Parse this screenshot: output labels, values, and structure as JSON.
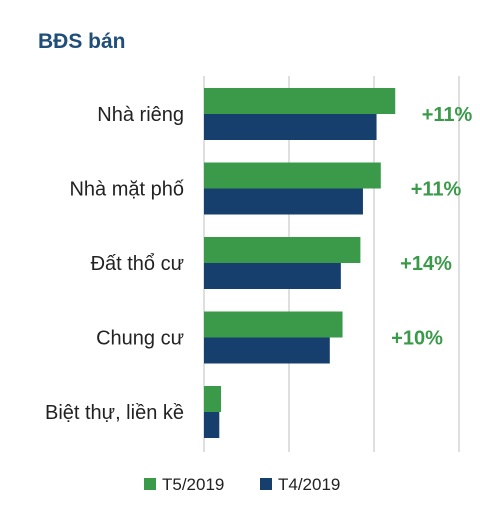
{
  "chart_data": {
    "type": "bar",
    "orientation": "horizontal",
    "title": "BĐS bán",
    "categories": [
      "Nhà riêng",
      "Nhà mặt phố",
      "Đất thổ cư",
      "Chung cư",
      "Biệt thự, liền kề"
    ],
    "series": [
      {
        "name": "T5/2019",
        "color": "#3a9a4a",
        "values": [
          22.5,
          20.8,
          18.4,
          16.3,
          2.0
        ]
      },
      {
        "name": "T4/2019",
        "color": "#163f6e",
        "values": [
          20.3,
          18.7,
          16.1,
          14.8,
          1.8
        ]
      }
    ],
    "annotations": [
      "+11%",
      "+11%",
      "+14%",
      "+10%"
    ],
    "xlim": [
      0,
      30
    ],
    "x_tick_labels_shown": false,
    "grid": "vertical",
    "legend": "bottom"
  }
}
